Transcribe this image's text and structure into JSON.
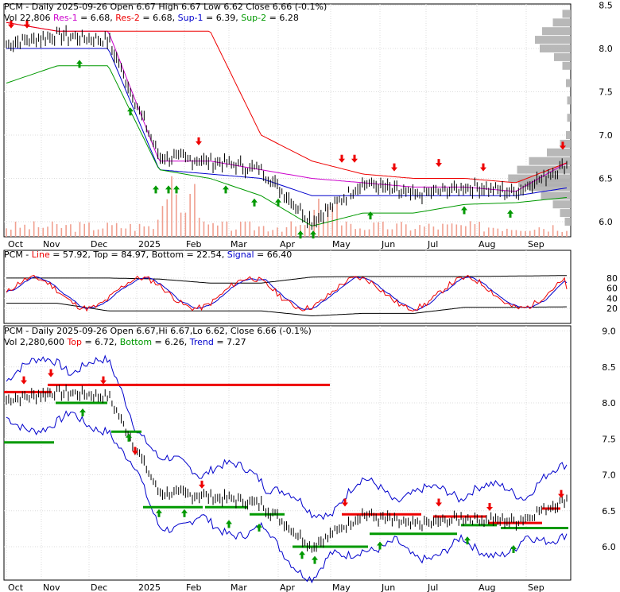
{
  "colors": {
    "up": "#000000",
    "panel_border": "#000000",
    "res1": "#cc00cc",
    "res2": "#ee0000",
    "sup1": "#0000cc",
    "sup2": "#009900",
    "volume": "#f0a090",
    "profile": "#b0b0b0",
    "stoch_line": "#ee0000",
    "stoch_signal": "#0000cc",
    "band": "#000000",
    "sell_arrow": "#ee0000",
    "buy_arrow": "#009900",
    "top_level": "#ee0000",
    "bottom_level": "#009900",
    "trend": "#0000cc"
  },
  "months": [
    "Oct",
    "Nov",
    "Dec",
    "2025",
    "Feb",
    "Mar",
    "Apr",
    "May",
    "Jun",
    "Jul",
    "Aug",
    "Sep"
  ],
  "panel1": {
    "title_ticker": "PCM",
    "title_rest": " - Daily 2025-09-26 Open 6.67  High 6.67  Low 6.62  Close 6.66 (-0.1%)",
    "vol_label": "Vol 22,806",
    "res1_label": "Res-1",
    "res1_value": " = 6.68,",
    "res2_label": "Res-2",
    "res2_value": " = 6.68,",
    "sup1_label": "Sup-1",
    "sup1_value": " = 6.39,",
    "sup2_label": "Sup-2",
    "sup2_value": " = 6.28",
    "y_ticks": [
      "8.5",
      "8.0",
      "7.5",
      "7.0",
      "6.5",
      "6.0"
    ],
    "y_values": [
      8.5,
      8.0,
      7.5,
      7.0,
      6.5,
      6.0
    ]
  },
  "panel2": {
    "ticker": "PCM",
    "line_label": "Line",
    "line_value": " = 57.92,",
    "top_label": "Top",
    "top_value": " = 84.97,",
    "bottom_label": "Bottom",
    "bottom_value": " = 22.54,",
    "signal_label": "Signal",
    "signal_value": " = 66.40",
    "y_ticks": [
      "80",
      "60",
      "40",
      "20"
    ],
    "y_values": [
      80,
      60,
      40,
      20
    ]
  },
  "panel3": {
    "title_ticker": "PCM",
    "title_rest": " - Daily 2025-09-26 Open 6.67,Hi 6.67,Lo 6.62, Close 6.66 (-0.1%)",
    "vol_label": "Vol 2,280,600",
    "top_label": "Top",
    "top_value": " = 6.72,",
    "bottom_label": "Bottom",
    "bottom_value": " = 6.26,",
    "trend_label": "Trend",
    "trend_value": " = 7.27",
    "y_ticks": [
      "9.0",
      "8.5",
      "8.0",
      "7.5",
      "7.0",
      "6.5",
      "6.0"
    ],
    "y_values": [
      9.0,
      8.5,
      8.0,
      7.5,
      7.0,
      6.5,
      6.0
    ]
  },
  "chart_data": [
    {
      "type": "line",
      "chart": "price",
      "x": [
        "Oct",
        "Nov",
        "Dec",
        "2025",
        "Feb",
        "Mar",
        "Apr",
        "May",
        "Jun",
        "Jul",
        "Aug",
        "Sep"
      ],
      "ylim": [
        5.9,
        8.6
      ],
      "series": [
        {
          "name": "PCM",
          "values": [
            8.05,
            8.15,
            8.1,
            6.75,
            6.7,
            6.6,
            6.0,
            6.45,
            6.3,
            6.4,
            6.35,
            6.66
          ]
        },
        {
          "name": "Res-1",
          "values": [
            8.3,
            8.2,
            8.2,
            6.7,
            6.7,
            6.6,
            6.5,
            6.45,
            6.4,
            6.4,
            6.35,
            6.68
          ]
        },
        {
          "name": "Res-2",
          "values": [
            8.3,
            8.2,
            8.2,
            8.2,
            8.2,
            7.0,
            6.7,
            6.55,
            6.5,
            6.5,
            6.45,
            6.68
          ]
        },
        {
          "name": "Sup-1",
          "values": [
            8.0,
            8.0,
            8.0,
            6.6,
            6.55,
            6.5,
            6.3,
            6.3,
            6.3,
            6.3,
            6.3,
            6.39
          ]
        },
        {
          "name": "Sup-2",
          "values": [
            7.6,
            7.8,
            7.8,
            6.6,
            6.5,
            6.3,
            5.95,
            6.1,
            6.1,
            6.2,
            6.22,
            6.28
          ]
        }
      ]
    },
    {
      "type": "line",
      "chart": "stochastic",
      "x": [
        "Oct",
        "Nov",
        "Dec",
        "2025",
        "Feb",
        "Mar",
        "Apr",
        "May",
        "Jun",
        "Jul",
        "Aug",
        "Sep"
      ],
      "ylim": [
        0,
        100
      ],
      "series": [
        {
          "name": "Line",
          "values": [
            70,
            40,
            75,
            20,
            60,
            35,
            25,
            70,
            40,
            70,
            30,
            58
          ]
        },
        {
          "name": "Signal",
          "values": [
            65,
            45,
            70,
            30,
            55,
            40,
            35,
            60,
            45,
            65,
            35,
            66
          ]
        },
        {
          "name": "Top",
          "values": [
            80,
            80,
            80,
            78,
            70,
            70,
            82,
            83,
            83,
            83,
            84,
            85
          ]
        },
        {
          "name": "Bottom",
          "values": [
            30,
            30,
            15,
            15,
            15,
            15,
            5,
            10,
            10,
            22,
            22,
            23
          ]
        }
      ]
    },
    {
      "type": "line",
      "chart": "trend",
      "x": [
        "Oct",
        "Nov",
        "Dec",
        "2025",
        "Feb",
        "Mar",
        "Apr",
        "May",
        "Jun",
        "Jul",
        "Aug",
        "Sep"
      ],
      "ylim": [
        5.75,
        9.0
      ],
      "series": [
        {
          "name": "PCM",
          "values": [
            8.05,
            8.15,
            8.1,
            6.75,
            6.7,
            6.6,
            6.0,
            6.45,
            6.3,
            6.4,
            6.35,
            6.66
          ]
        },
        {
          "name": "Top",
          "values": [
            8.15,
            8.25,
            8.25,
            6.75,
            6.7,
            6.6,
            6.5,
            6.45,
            6.45,
            6.4,
            6.35,
            6.72
          ]
        },
        {
          "name": "Bottom",
          "values": [
            7.45,
            8.0,
            7.6,
            6.6,
            6.6,
            6.45,
            6.0,
            6.2,
            6.2,
            6.25,
            6.25,
            6.26
          ]
        },
        {
          "name": "Trend",
          "values": [
            8.3,
            8.1,
            8.0,
            6.9,
            6.5,
            6.6,
            6.0,
            6.6,
            6.8,
            6.4,
            6.2,
            7.27
          ]
        }
      ]
    }
  ]
}
